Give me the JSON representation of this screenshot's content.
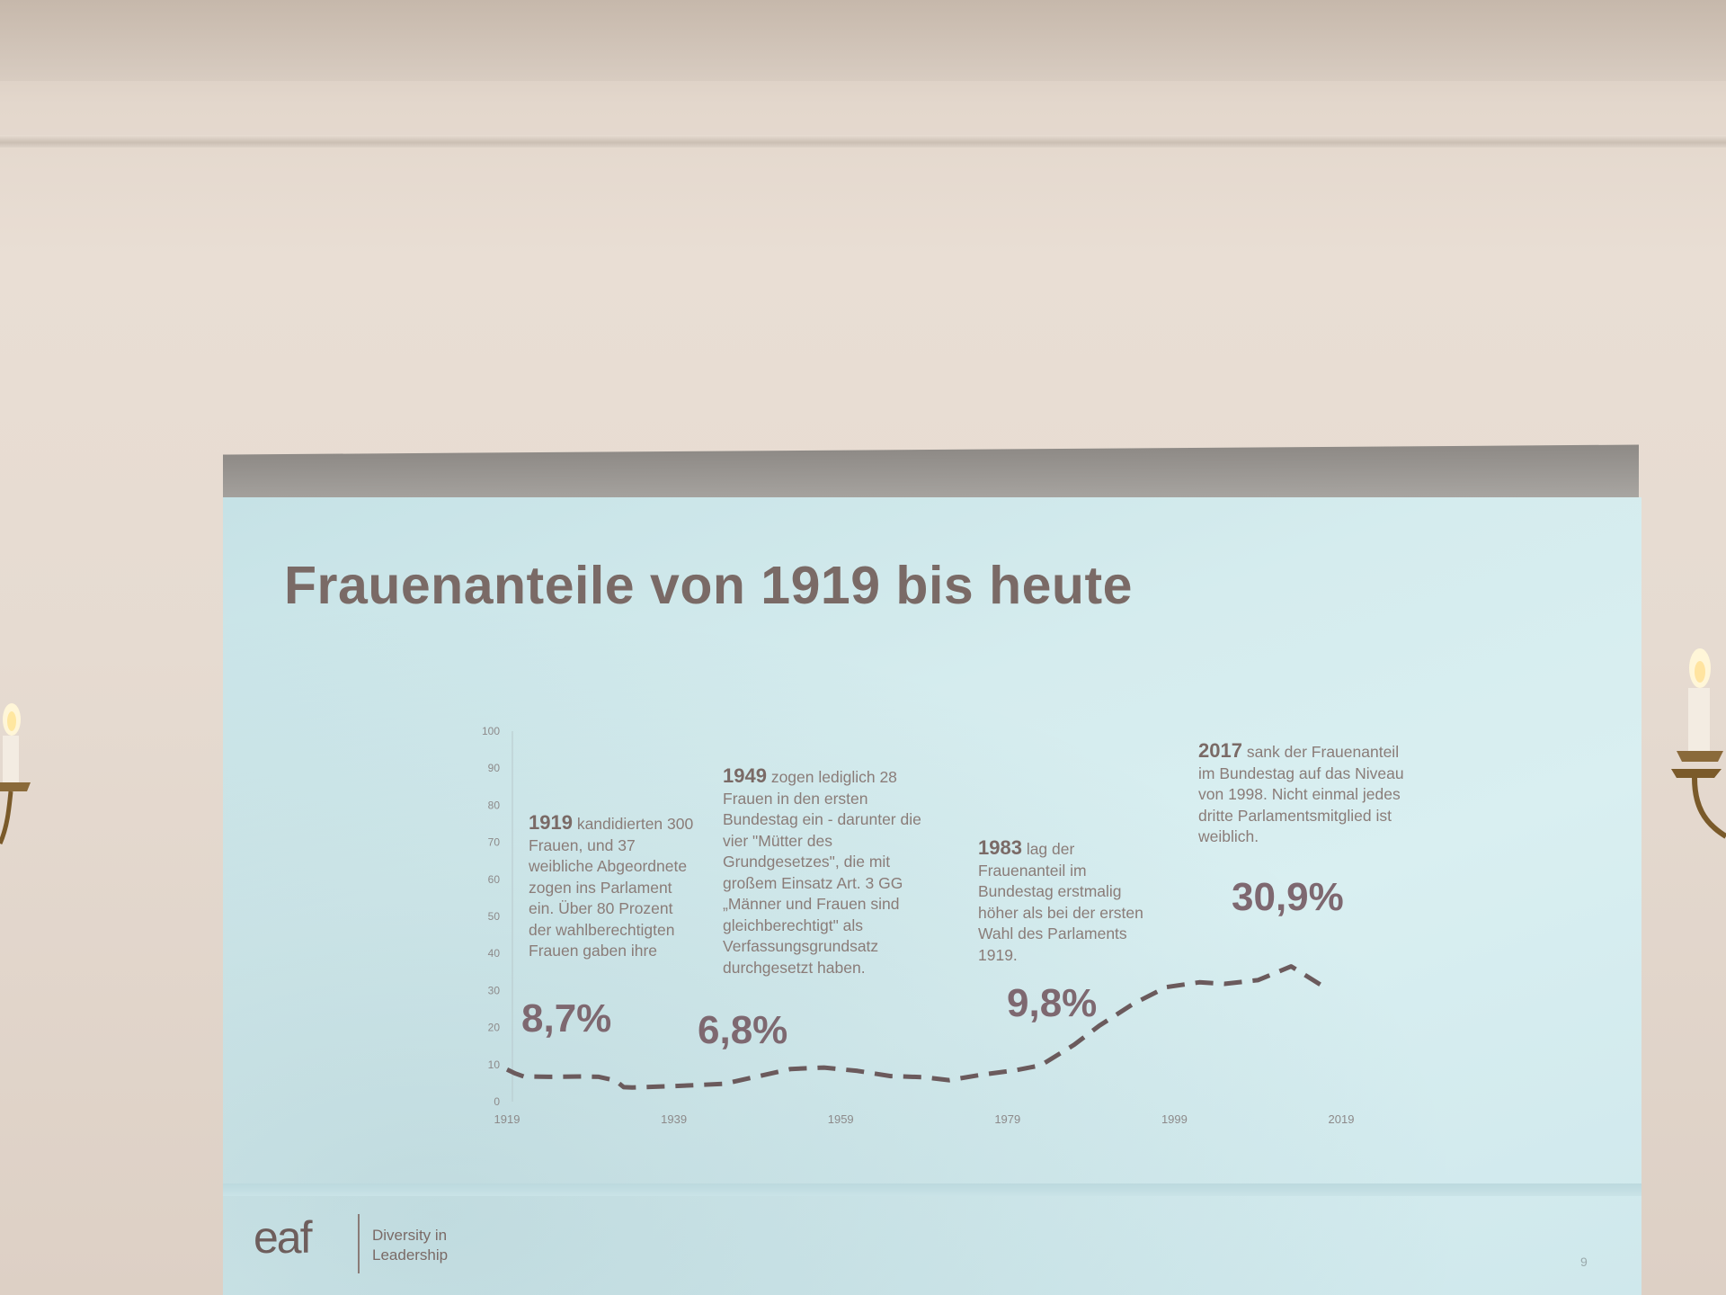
{
  "slide": {
    "title": "Frauenanteile von 1919 bis heute",
    "page_number": "9"
  },
  "logo": {
    "wordmark": "eaf",
    "tagline_line1": "Diversity in",
    "tagline_line2": "Leadership"
  },
  "annotations": [
    {
      "year": "1919",
      "text": " kandidierten 300 Frauen, und 37 weibliche Abgeordnete zogen ins Parlament ein. Über 80 Prozent der wahlberechtigten Frauen gaben ihre",
      "value": "8,7%"
    },
    {
      "year": "1949",
      "text": " zogen lediglich 28 Frauen in den ersten Bundestag ein - darunter die vier \"Mütter des Grundgesetzes\", die mit großem Einsatz Art. 3 GG „Männer und Frauen sind gleichberechtigt\" als Verfassungsgrundsatz durchgesetzt haben.",
      "value": "6,8%"
    },
    {
      "year": "1983",
      "text": " lag der Frauenanteil im Bundestag erstmalig höher als bei der ersten Wahl des Parlaments 1919.",
      "value": "9,8%"
    },
    {
      "year": "2017",
      "text": " sank der Frauenanteil im Bundestag auf das Niveau von 1998. Nicht einmal jedes dritte Parlamentsmitglied ist weiblich.",
      "value": "30,9%"
    }
  ],
  "chart_data": {
    "type": "line",
    "line_style": "dashed",
    "line_color": "#6b5a5c",
    "x_ticks": [
      "1919",
      "1939",
      "1959",
      "1979",
      "1999",
      "2019"
    ],
    "y_ticks": [
      "0",
      "10",
      "20",
      "30",
      "40",
      "50",
      "60",
      "70",
      "80",
      "90",
      "100"
    ],
    "xlim": [
      1919,
      2019
    ],
    "ylim": [
      0,
      100
    ],
    "series": [
      {
        "x": [
          1919,
          1920,
          1921,
          1924,
          1928,
          1930,
          1932,
          1933,
          1934,
          1939,
          1945,
          1949,
          1953,
          1957,
          1961,
          1965,
          1969,
          1972,
          1976,
          1980,
          1983,
          1987,
          1990,
          1994,
          1998,
          2002,
          2005,
          2009,
          2013,
          2017
        ],
        "y": [
          8.7,
          7.6,
          6.8,
          6.7,
          6.8,
          6.7,
          5.7,
          3.9,
          3.8,
          4.2,
          4.8,
          6.8,
          8.8,
          9.2,
          8.3,
          6.9,
          6.6,
          5.8,
          7.3,
          8.5,
          9.8,
          15.4,
          20.5,
          26.3,
          30.9,
          32.2,
          31.8,
          32.8,
          36.5,
          30.9
        ]
      }
    ]
  }
}
